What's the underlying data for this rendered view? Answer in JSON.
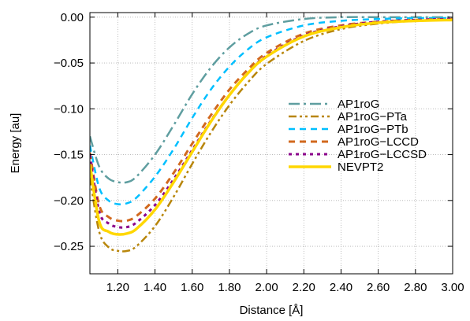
{
  "chart_data": {
    "type": "line",
    "xlabel": "Distance [Å]",
    "ylabel": "Energy [au]",
    "xlim": [
      1.05,
      3.0
    ],
    "ylim": [
      -0.28,
      0.005
    ],
    "x_ticks": [
      "1.20",
      "1.40",
      "1.60",
      "1.80",
      "2.00",
      "2.20",
      "2.40",
      "2.60",
      "2.80",
      "3.00"
    ],
    "y_ticks": [
      "0.00",
      "−0.05",
      "−0.10",
      "−0.15",
      "−0.20",
      "−0.25"
    ],
    "grid": true,
    "legend_position": "right",
    "series": [
      {
        "name": "AP1roG",
        "color": "#5f9ea0",
        "dash": "14,5,3,5",
        "width": 2.5,
        "x": [
          1.05,
          1.1,
          1.15,
          1.2,
          1.25,
          1.3,
          1.4,
          1.5,
          1.6,
          1.7,
          1.8,
          1.9,
          2.0,
          2.2,
          2.4,
          2.6,
          2.8,
          3.0
        ],
        "y": [
          -0.13,
          -0.163,
          -0.176,
          -0.18,
          -0.18,
          -0.174,
          -0.15,
          -0.118,
          -0.084,
          -0.055,
          -0.033,
          -0.018,
          -0.009,
          -0.002,
          0.0,
          0.0,
          0.0,
          0.0
        ]
      },
      {
        "name": "AP1roG−PTa",
        "color": "#b8860b",
        "dash": "10,4,3,4,3,4",
        "width": 2.5,
        "x": [
          1.05,
          1.1,
          1.15,
          1.2,
          1.25,
          1.3,
          1.4,
          1.5,
          1.6,
          1.7,
          1.8,
          1.9,
          2.0,
          2.2,
          2.4,
          2.6,
          2.8,
          3.0
        ],
        "y": [
          -0.175,
          -0.234,
          -0.251,
          -0.255,
          -0.255,
          -0.25,
          -0.228,
          -0.196,
          -0.16,
          -0.126,
          -0.096,
          -0.071,
          -0.051,
          -0.026,
          -0.013,
          -0.007,
          -0.004,
          -0.002
        ]
      },
      {
        "name": "AP1roG−PTb",
        "color": "#00bfff",
        "dash": "8,6",
        "width": 2.5,
        "x": [
          1.05,
          1.1,
          1.15,
          1.2,
          1.25,
          1.3,
          1.4,
          1.5,
          1.6,
          1.7,
          1.8,
          1.9,
          2.0,
          2.2,
          2.4,
          2.6,
          2.8,
          3.0
        ],
        "y": [
          -0.14,
          -0.186,
          -0.2,
          -0.204,
          -0.203,
          -0.197,
          -0.174,
          -0.144,
          -0.11,
          -0.079,
          -0.054,
          -0.035,
          -0.022,
          -0.009,
          -0.004,
          -0.002,
          -0.001,
          -0.001
        ]
      },
      {
        "name": "AP1roG−LCCD",
        "color": "#d2691e",
        "dash": "8,6",
        "width": 3,
        "x": [
          1.05,
          1.1,
          1.15,
          1.2,
          1.25,
          1.3,
          1.4,
          1.5,
          1.6,
          1.7,
          1.8,
          1.9,
          2.0,
          2.2,
          2.4,
          2.6,
          2.8,
          3.0
        ],
        "y": [
          -0.148,
          -0.205,
          -0.218,
          -0.222,
          -0.222,
          -0.217,
          -0.198,
          -0.17,
          -0.138,
          -0.107,
          -0.079,
          -0.057,
          -0.039,
          -0.018,
          -0.009,
          -0.005,
          -0.003,
          -0.002
        ]
      },
      {
        "name": "AP1roG−LCCSD",
        "color": "#8b008b",
        "dash": "4,5",
        "width": 3,
        "x": [
          1.05,
          1.1,
          1.15,
          1.2,
          1.25,
          1.3,
          1.4,
          1.5,
          1.6,
          1.7,
          1.8,
          1.9,
          2.0,
          2.2,
          2.4,
          2.6,
          2.8,
          3.0
        ],
        "y": [
          -0.15,
          -0.212,
          -0.225,
          -0.229,
          -0.229,
          -0.224,
          -0.205,
          -0.177,
          -0.145,
          -0.113,
          -0.085,
          -0.061,
          -0.042,
          -0.02,
          -0.01,
          -0.005,
          -0.003,
          -0.002
        ]
      },
      {
        "name": "NEVPT2",
        "color": "#ffd700",
        "dash": "",
        "width": 3.5,
        "x": [
          1.05,
          1.1,
          1.15,
          1.2,
          1.25,
          1.3,
          1.4,
          1.5,
          1.6,
          1.7,
          1.8,
          1.9,
          2.0,
          2.2,
          2.4,
          2.6,
          2.8,
          3.0
        ],
        "y": [
          -0.16,
          -0.223,
          -0.234,
          -0.237,
          -0.236,
          -0.231,
          -0.21,
          -0.18,
          -0.147,
          -0.114,
          -0.085,
          -0.061,
          -0.043,
          -0.021,
          -0.011,
          -0.006,
          -0.004,
          -0.003
        ]
      }
    ]
  }
}
